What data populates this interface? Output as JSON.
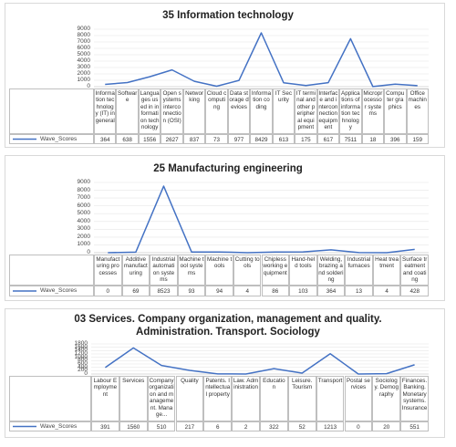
{
  "chart_data": [
    {
      "type": "line",
      "title": "35  Information technology",
      "categories": [
        "Information technology (IT) in general",
        "Software",
        "Languages used in information technology",
        "Open systems interconnection (OSI)",
        "Networking",
        "Cloud computing",
        "Data storage devices",
        "Information coding",
        "IT Security",
        "IT terminal and other peripheral equipment",
        "Interface and interconnection equipment",
        "Applications of information technology",
        "Microprocessor systems",
        "Computer graphics",
        "Office machines"
      ],
      "series": [
        {
          "name": "Wave_Scores",
          "color": "#4472c4",
          "values": [
            364,
            638,
            1556,
            2627,
            837,
            73,
            977,
            8429,
            613,
            175,
            617,
            7511,
            18,
            396,
            159
          ]
        }
      ],
      "ylim": [
        0,
        9000
      ],
      "yticks": [
        0,
        1000,
        2000,
        3000,
        4000,
        5000,
        6000,
        7000,
        8000,
        9000
      ],
      "grid": true
    },
    {
      "type": "line",
      "title": "25  Manufacturing engineering",
      "categories": [
        "Manufacturing processes",
        "Additive manufacturing",
        "Industrial automation systems",
        "Machine tool systems",
        "Machine tools",
        "Cutting tools",
        "Chipless working equipment",
        "Hand-held tools",
        "Welding, brazing and soldering",
        "Industrial furnaces",
        "Heat treatment",
        "Surface treatment and coating"
      ],
      "series": [
        {
          "name": "Wave_Scores",
          "color": "#4472c4",
          "values": [
            0,
            69,
            8523,
            93,
            94,
            4,
            86,
            103,
            364,
            13,
            4,
            428
          ]
        }
      ],
      "ylim": [
        0,
        9000
      ],
      "yticks": [
        0,
        1000,
        2000,
        3000,
        4000,
        5000,
        6000,
        7000,
        8000,
        9000
      ],
      "grid": true
    },
    {
      "type": "line",
      "title": "03 Services. Company organization, management and quality. Administration. Transport. Sociology",
      "categories": [
        "Labour Employment",
        "Services",
        "Company organization and management. Manage...",
        "Quality",
        "Patents. Intellectual property",
        "Law. Administration",
        "Education",
        "Leisure. Tourism",
        "Transport",
        "Postal services",
        "Sociology. Demography",
        "Finances. Banking. Monetary systems. Insurance"
      ],
      "series": [
        {
          "name": "Wave_Scores",
          "color": "#4472c4",
          "values": [
            391,
            1560,
            510,
            217,
            6,
            2,
            322,
            52,
            1213,
            0,
            20,
            551
          ]
        }
      ],
      "ylim": [
        0,
        1800
      ],
      "yticks": [
        0,
        200,
        400,
        600,
        800,
        1000,
        1200,
        1400,
        1600,
        1800
      ],
      "grid": true
    }
  ]
}
